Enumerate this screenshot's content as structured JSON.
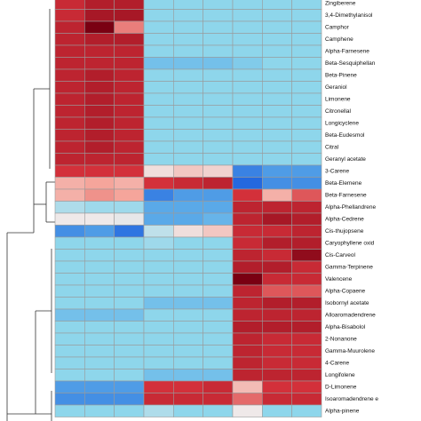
{
  "chart_data": {
    "type": "heatmap",
    "rows": [
      "Zingiberene",
      "3,4-Dimethylanisol",
      "Camphor",
      "Camphene",
      "Alpha-Farnesene",
      "Beta-Sesquiphellan",
      "Beta-Pinene",
      "Geraniol",
      "Limonene",
      "Citronellal",
      "Longicyclene",
      "Beta-Eudesmol",
      "Citral",
      "Geranyl acetate",
      "3-Carene",
      "Beta-Elemene",
      "Beta-Farnesene",
      "Alpha-Phellandrene",
      "Alpha-Cedrene",
      "Cis-thujopsene",
      "Caryophyllene oxid",
      "Cis-Carveol",
      "Gamma-Terpinene",
      "Valencene",
      "Alpha-Copaene",
      "Isobornyl acetate",
      "Alloaromadendrene",
      "Alpha-Bisabolol",
      "2-Nonanone",
      "Gamma-Muurolene",
      "4-Carene",
      "Longifolene",
      "D-Limonene",
      "Isoaromadendrene e",
      "Alpha-pinene"
    ],
    "values": [
      [
        1.3,
        1.5,
        1.5,
        -0.6,
        -0.6,
        -0.6,
        -0.6,
        -0.6,
        -0.6
      ],
      [
        1.3,
        1.6,
        1.6,
        -0.6,
        -0.6,
        -0.6,
        -0.6,
        -0.6,
        -0.6
      ],
      [
        1.4,
        2.0,
        0.8,
        -0.6,
        -0.6,
        -0.6,
        -0.6,
        -0.6,
        -0.6
      ],
      [
        1.4,
        1.5,
        1.5,
        -0.6,
        -0.6,
        -0.6,
        -0.6,
        -0.6,
        -0.6
      ],
      [
        1.4,
        1.4,
        1.4,
        -0.6,
        -0.6,
        -0.6,
        -0.6,
        -0.6,
        -0.6
      ],
      [
        1.4,
        1.4,
        1.4,
        -0.8,
        -0.8,
        -0.8,
        -0.7,
        -0.6,
        -0.6
      ],
      [
        1.4,
        1.5,
        1.4,
        -0.6,
        -0.6,
        -0.6,
        -0.6,
        -0.6,
        -0.6
      ],
      [
        1.4,
        1.5,
        1.4,
        -0.6,
        -0.6,
        -0.6,
        -0.6,
        -0.6,
        -0.6
      ],
      [
        1.4,
        1.5,
        1.4,
        -0.6,
        -0.6,
        -0.6,
        -0.6,
        -0.6,
        -0.6
      ],
      [
        1.4,
        1.5,
        1.4,
        -0.6,
        -0.6,
        -0.6,
        -0.6,
        -0.6,
        -0.6
      ],
      [
        1.4,
        1.5,
        1.4,
        -0.6,
        -0.6,
        -0.6,
        -0.6,
        -0.6,
        -0.6
      ],
      [
        1.4,
        1.5,
        1.4,
        -0.6,
        -0.6,
        -0.6,
        -0.6,
        -0.6,
        -0.6
      ],
      [
        1.4,
        1.5,
        1.4,
        -0.6,
        -0.6,
        -0.6,
        -0.6,
        -0.6,
        -0.6
      ],
      [
        1.4,
        1.4,
        1.4,
        -0.6,
        -0.6,
        -0.6,
        -0.6,
        -0.6,
        -0.6
      ],
      [
        1.2,
        1.2,
        1.2,
        0.1,
        0.3,
        0.2,
        -1.3,
        -1.1,
        -1.1
      ],
      [
        0.5,
        0.6,
        0.5,
        1.2,
        1.3,
        1.4,
        -1.5,
        -1.2,
        -1.2
      ],
      [
        0.5,
        0.7,
        0.6,
        -1.3,
        -1.1,
        -1.1,
        1.2,
        0.5,
        1.0
      ],
      [
        -0.4,
        -0.5,
        -0.5,
        -1.0,
        -1.0,
        -1.0,
        1.4,
        1.4,
        1.4
      ],
      [
        0,
        0,
        -0.05,
        -1.0,
        -1.0,
        -0.9,
        1.4,
        1.6,
        1.5
      ],
      [
        -1.2,
        -1.1,
        -1.4,
        -0.3,
        0.1,
        0.3,
        1.3,
        1.3,
        1.4
      ],
      [
        -0.6,
        -0.6,
        -0.6,
        -0.5,
        -0.6,
        -0.6,
        1.3,
        1.5,
        1.5
      ],
      [
        -0.6,
        -0.6,
        -0.6,
        -0.6,
        -0.6,
        -0.6,
        1.4,
        1.3,
        1.8
      ],
      [
        -0.6,
        -0.6,
        -0.6,
        -0.6,
        -0.6,
        -0.6,
        1.5,
        1.5,
        1.3
      ],
      [
        -0.6,
        -0.6,
        -0.6,
        -0.6,
        -0.6,
        -0.6,
        2.0,
        1.3,
        1.3
      ],
      [
        -0.6,
        -0.6,
        -0.6,
        -0.6,
        -0.6,
        -0.6,
        1.4,
        1.0,
        1.0
      ],
      [
        -0.6,
        -0.6,
        -0.6,
        -0.8,
        -0.8,
        -0.8,
        1.4,
        1.5,
        1.5
      ],
      [
        -0.8,
        -0.8,
        -0.8,
        -0.6,
        -0.6,
        -0.6,
        1.4,
        1.4,
        1.4
      ],
      [
        -0.6,
        -0.6,
        -0.6,
        -0.6,
        -0.6,
        -0.6,
        1.5,
        1.5,
        1.5
      ],
      [
        -0.6,
        -0.6,
        -0.6,
        -0.6,
        -0.6,
        -0.6,
        1.4,
        1.3,
        1.3
      ],
      [
        -0.6,
        -0.6,
        -0.6,
        -0.6,
        -0.6,
        -0.6,
        1.4,
        1.3,
        1.3
      ],
      [
        -0.6,
        -0.6,
        -0.6,
        -0.6,
        -0.6,
        -0.6,
        1.4,
        1.3,
        1.3
      ],
      [
        -0.6,
        -0.6,
        -0.6,
        -0.8,
        -0.8,
        -0.8,
        1.4,
        1.4,
        1.4
      ],
      [
        -1.1,
        -1.1,
        -1.1,
        1.2,
        1.2,
        1.3,
        0.4,
        1.2,
        1.2
      ],
      [
        -1.2,
        -1.2,
        -1.2,
        1.3,
        1.3,
        1.3,
        0.9,
        1.3,
        1.3
      ],
      [
        -0.6,
        -0.6,
        -0.6,
        -0.4,
        -0.6,
        -0.6,
        0,
        -0.6,
        -0.6
      ]
    ],
    "color_scale": {
      "stops": [
        -1.5,
        -1,
        -0.6,
        0,
        0.6,
        1.2,
        2
      ],
      "colors": [
        "#2468df",
        "#5aa9e8",
        "#8ed6eb",
        "#efe9e9",
        "#f5a59b",
        "#d3303a",
        "#7a0012"
      ]
    }
  }
}
